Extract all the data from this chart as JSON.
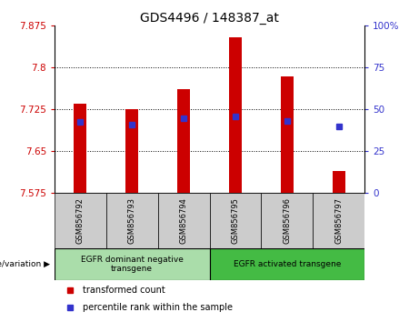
{
  "title": "GDS4496 / 148387_at",
  "samples": [
    "GSM856792",
    "GSM856793",
    "GSM856794",
    "GSM856795",
    "GSM856796",
    "GSM856797"
  ],
  "bar_bottom": 7.575,
  "bar_tops": [
    7.735,
    7.725,
    7.762,
    7.855,
    7.785,
    7.615
  ],
  "percentile_values": [
    7.703,
    7.698,
    7.71,
    7.712,
    7.705,
    7.694
  ],
  "percentile_right_vals": [
    40,
    39,
    43,
    44,
    41,
    36
  ],
  "ylim_left": [
    7.575,
    7.875
  ],
  "ylim_right": [
    0,
    100
  ],
  "yticks_left": [
    7.575,
    7.65,
    7.725,
    7.8,
    7.875
  ],
  "yticks_right": [
    0,
    25,
    50,
    75,
    100
  ],
  "ytick_labels_right": [
    "0",
    "25",
    "50",
    "75",
    "100%"
  ],
  "bar_color": "#cc0000",
  "blue_color": "#3333cc",
  "group1_label": "EGFR dominant negative\ntransgene",
  "group2_label": "EGFR activated transgene",
  "group1_color": "#aaddaa",
  "group2_color": "#44bb44",
  "genotype_label": "genotype/variation",
  "legend1": "transformed count",
  "legend2": "percentile rank within the sample",
  "tick_label_color_left": "#cc0000",
  "tick_label_color_right": "#3333cc",
  "bar_width": 0.25,
  "n_group1": 3,
  "n_group2": 3
}
